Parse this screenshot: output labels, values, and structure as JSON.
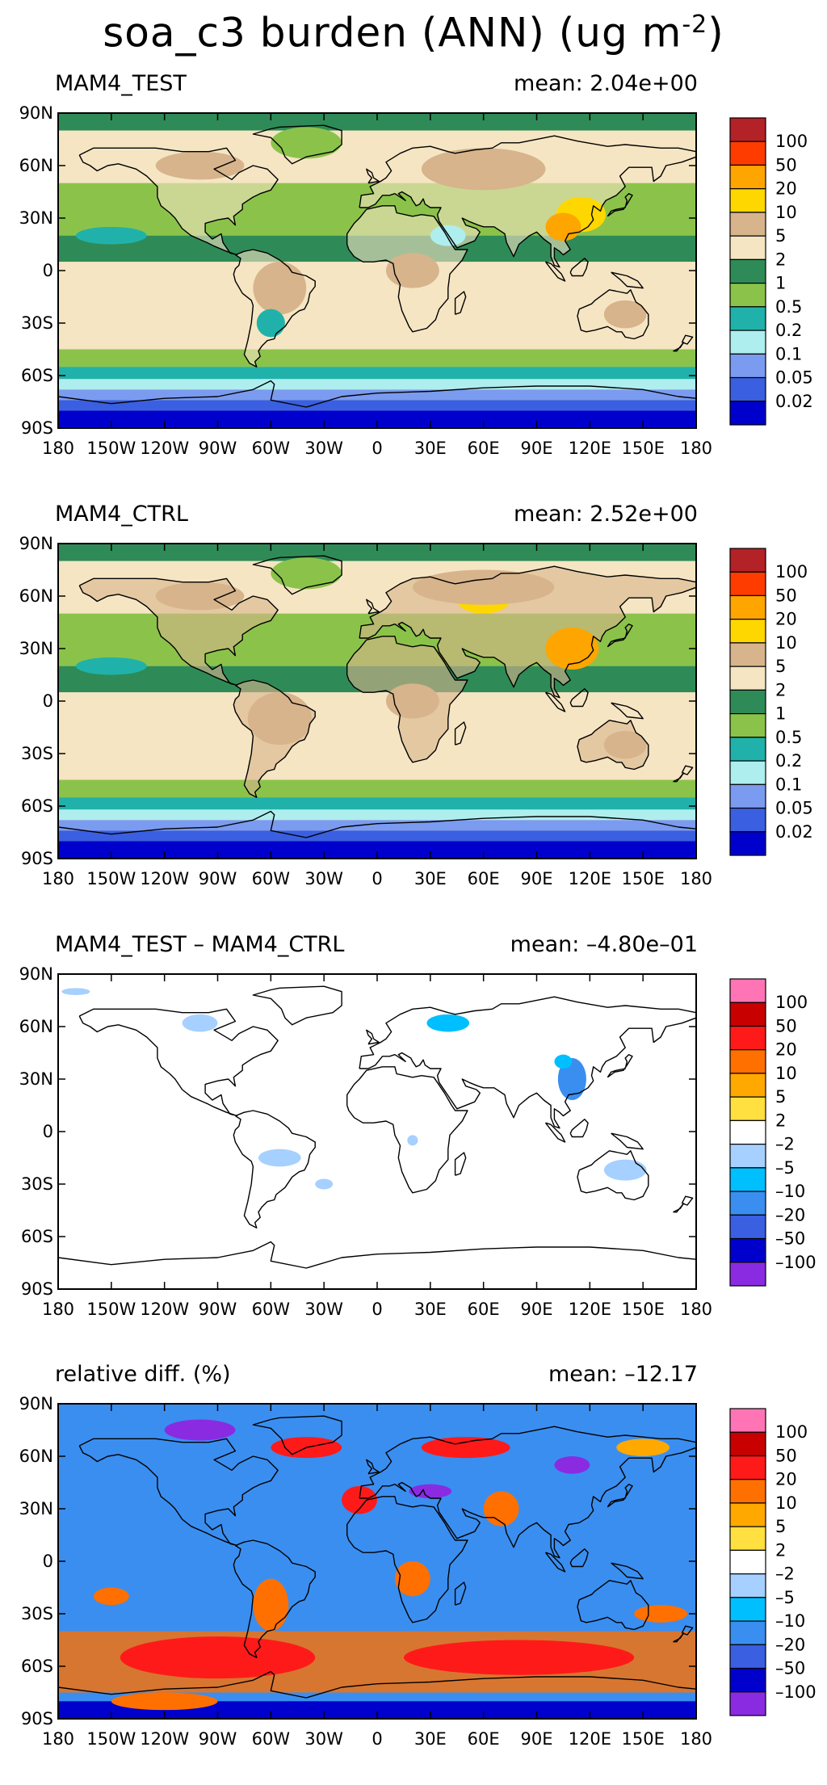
{
  "title": {
    "main": "soa_c3 burden (ANN) (ug m",
    "exp": "-2",
    "close": ")"
  },
  "shared_axes": {
    "lat_labels": [
      "90N",
      "60N",
      "30N",
      "0",
      "30S",
      "60S",
      "90S"
    ],
    "lon_labels": [
      "180",
      "150W",
      "120W",
      "90W",
      "60W",
      "30W",
      "0",
      "30E",
      "60E",
      "90E",
      "120E",
      "150E",
      "180"
    ]
  },
  "chart_data": [
    {
      "type": "heatmap",
      "subtitle": "MAM4_TEST",
      "mean_text": "mean: 2.04e+00",
      "mean_value": 2.04,
      "colorbar_levels": [
        "100",
        "50",
        "20",
        "10",
        "5",
        "2",
        "1",
        "0.5",
        "0.2",
        "0.1",
        "0.05",
        "0.02"
      ],
      "colorbar_colors": [
        "#b32227",
        "#ff3c00",
        "#ffa500",
        "#ffd700",
        "#d7b48c",
        "#f5e5c3",
        "#2e8b57",
        "#8bc34a",
        "#20b2aa",
        "#afeeee",
        "#7b9bf0",
        "#3a5fe0",
        "#0000cd"
      ]
    },
    {
      "type": "heatmap",
      "subtitle": "MAM4_CTRL",
      "mean_text": "mean: 2.52e+00",
      "mean_value": 2.52,
      "colorbar_levels": [
        "100",
        "50",
        "20",
        "10",
        "5",
        "2",
        "1",
        "0.5",
        "0.2",
        "0.1",
        "0.05",
        "0.02"
      ],
      "colorbar_colors": [
        "#b32227",
        "#ff3c00",
        "#ffa500",
        "#ffd700",
        "#d7b48c",
        "#f5e5c3",
        "#2e8b57",
        "#8bc34a",
        "#20b2aa",
        "#afeeee",
        "#7b9bf0",
        "#3a5fe0",
        "#0000cd"
      ]
    },
    {
      "type": "heatmap",
      "subtitle": "MAM4_TEST – MAM4_CTRL",
      "mean_text": "mean: –4.80e–01",
      "mean_value": -0.48,
      "colorbar_levels": [
        "100",
        "50",
        "20",
        "10",
        "5",
        "2",
        "–2",
        "–5",
        "–10",
        "–20",
        "–50",
        "–100"
      ],
      "colorbar_colors": [
        "#ff74b4",
        "#c80000",
        "#ff1a1a",
        "#ff7000",
        "#ffa800",
        "#ffe040",
        "#ffffff",
        "#a6d0ff",
        "#00bfff",
        "#3a8ef0",
        "#3a5fe0",
        "#0000cd",
        "#8a2be2"
      ]
    },
    {
      "type": "heatmap",
      "subtitle": "relative diff. (%)",
      "mean_text": "mean: –12.17",
      "mean_value": -12.17,
      "colorbar_levels": [
        "100",
        "50",
        "20",
        "10",
        "5",
        "2",
        "–2",
        "–5",
        "–10",
        "–20",
        "–50",
        "–100"
      ],
      "colorbar_colors": [
        "#ff74b4",
        "#c80000",
        "#ff1a1a",
        "#ff7000",
        "#ffa800",
        "#ffe040",
        "#ffffff",
        "#a6d0ff",
        "#00bfff",
        "#3a8ef0",
        "#3a5fe0",
        "#0000cd",
        "#8a2be2"
      ]
    }
  ]
}
